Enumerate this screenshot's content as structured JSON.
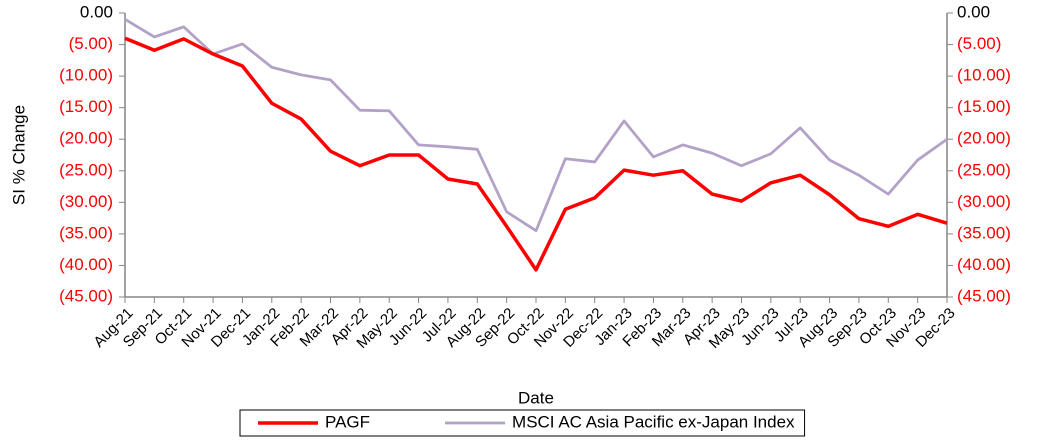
{
  "chart_data": {
    "type": "line",
    "y_axis_label": "SI % Change",
    "x_axis_label": "Date",
    "categories": [
      "Aug-21",
      "Sep-21",
      "Oct-21",
      "Nov-21",
      "Dec-21",
      "Jan-22",
      "Feb-22",
      "Mar-22",
      "Apr-22",
      "May-22",
      "Jun-22",
      "Jul-22",
      "Aug-22",
      "Sep-22",
      "Oct-22",
      "Nov-22",
      "Dec-22",
      "Jan-23",
      "Feb-23",
      "Mar-23",
      "Apr-23",
      "May-23",
      "Jun-23",
      "Jul-23",
      "Aug-23",
      "Sep-23",
      "Oct-23",
      "Nov-23",
      "Dec-23"
    ],
    "series": [
      {
        "name": "PAGF",
        "color": "#ff0000",
        "values": [
          -4.0,
          -5.9,
          -4.1,
          -6.5,
          -8.4,
          -14.3,
          -16.8,
          -21.9,
          -24.2,
          -22.5,
          -22.5,
          -26.3,
          -27.1,
          -33.8,
          -40.7,
          -31.1,
          -29.3,
          -24.9,
          -25.7,
          -25.0,
          -28.7,
          -29.8,
          -26.9,
          -25.7,
          -28.8,
          -32.6,
          -33.8,
          -31.9,
          -33.3
        ]
      },
      {
        "name": "MSCI AC Asia Pacific ex-Japan Index",
        "color": "#b3a2c7",
        "values": [
          -1.0,
          -3.8,
          -2.2,
          -6.5,
          -4.9,
          -8.6,
          -9.8,
          -10.6,
          -15.4,
          -15.5,
          -20.9,
          -21.2,
          -21.6,
          -31.5,
          -34.5,
          -23.1,
          -23.6,
          -17.1,
          -22.8,
          -20.9,
          -22.2,
          -24.2,
          -22.3,
          -18.2,
          -23.3,
          -25.7,
          -28.7,
          -23.3,
          -20.0
        ]
      }
    ],
    "ylim": [
      -45,
      0
    ],
    "yticks": [
      {
        "value": 0,
        "label": "0.00"
      },
      {
        "value": -5,
        "label": "(5.00)"
      },
      {
        "value": -10,
        "label": "(10.00)"
      },
      {
        "value": -15,
        "label": "(15.00)"
      },
      {
        "value": -20,
        "label": "(20.00)"
      },
      {
        "value": -25,
        "label": "(25.00)"
      },
      {
        "value": -30,
        "label": "(30.00)"
      },
      {
        "value": -35,
        "label": "(35.00)"
      },
      {
        "value": -40,
        "label": "(40.00)"
      },
      {
        "value": -45,
        "label": "(45.00)"
      }
    ],
    "y2lim": [
      -45,
      0
    ],
    "y2ticks": [
      {
        "value": 0,
        "label": "0.00"
      },
      {
        "value": -5,
        "label": "(5.00)"
      },
      {
        "value": -10,
        "label": "(10.00)"
      },
      {
        "value": -15,
        "label": "(15.00)"
      },
      {
        "value": -20,
        "label": "(20.00)"
      },
      {
        "value": -25,
        "label": "(25.00)"
      },
      {
        "value": -30,
        "label": "(30.00)"
      },
      {
        "value": -35,
        "label": "(35.00)"
      },
      {
        "value": -40,
        "label": "(40.00)"
      },
      {
        "value": -45,
        "label": "(45.00)"
      }
    ],
    "negative_tick_color": "#ff0000",
    "grid": false,
    "legend": "bottom"
  }
}
